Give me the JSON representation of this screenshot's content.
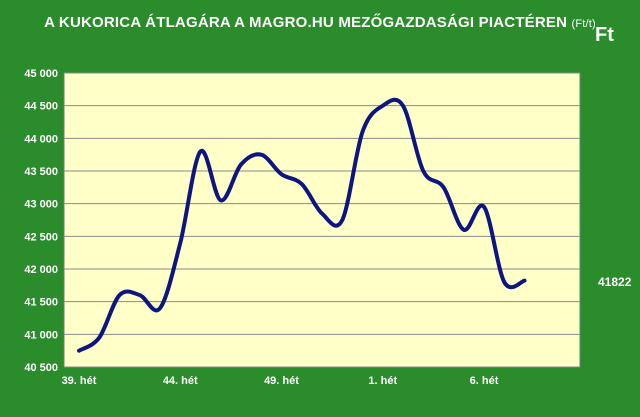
{
  "chart_data": {
    "type": "line",
    "title": "A KUKORICA ÁTLAGÁRA A MAGRO.HU MEZŐGAZDASÁGI PIACTÉREN",
    "title_unit": "(Ft/t)",
    "currency_label": "Ft",
    "last_value_label": "41822",
    "ylim": [
      40500,
      45000
    ],
    "yticks": [
      40500,
      41000,
      41500,
      42000,
      42500,
      43000,
      43500,
      44000,
      44500,
      45000
    ],
    "ytick_labels": [
      "40 500",
      "41 000",
      "41 500",
      "42 000",
      "42 500",
      "43 000",
      "43 500",
      "44 000",
      "44 500",
      "45 000"
    ],
    "xtick_labels": [
      "39. hét",
      "44. hét",
      "49. hét",
      "1. hét",
      "6. hét"
    ],
    "xtick_positions": [
      0,
      5,
      10,
      15,
      20
    ],
    "grid": true,
    "line_color": "#0d1580",
    "plot_background": "#ffffc8",
    "series": [
      {
        "x": [
          0,
          1,
          2,
          3,
          4,
          5,
          6,
          7,
          8,
          9,
          10,
          11,
          12,
          13,
          14,
          15,
          16,
          17,
          18,
          19,
          20,
          21,
          22,
          23,
          24
        ],
        "values": [
          40750,
          40950,
          41600,
          41600,
          41400,
          42400,
          43800,
          43050,
          43600,
          43750,
          43450,
          43300,
          42850,
          42750,
          44100,
          44500,
          44500,
          43500,
          43250,
          42600,
          42950,
          41800,
          41822,
          41822,
          41822
        ]
      }
    ]
  }
}
